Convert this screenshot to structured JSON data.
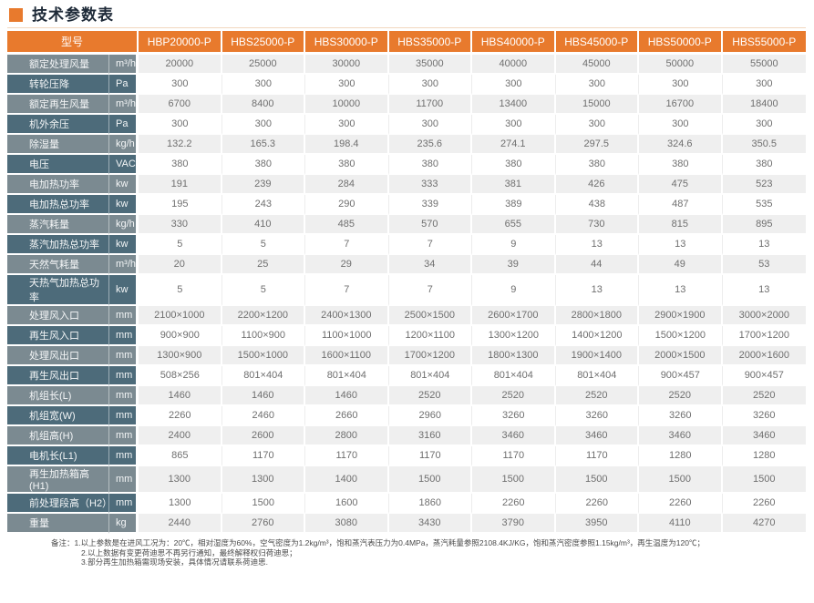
{
  "page": {
    "title": "技术参数表"
  },
  "colors": {
    "accent_orange": "#E87A2D",
    "label_light_slate": "#7B8A91",
    "label_dark_slate": "#4D6B7A",
    "row_gray": "#EFEFEF",
    "row_white": "#FFFFFF",
    "title_text": "#1E2A38"
  },
  "table": {
    "model_header": "型号",
    "models": [
      "HBP20000-P",
      "HBS25000-P",
      "HBS30000-P",
      "HBS35000-P",
      "HBS40000-P",
      "HBS45000-P",
      "HBS50000-P",
      "HBS55000-P"
    ],
    "rows": [
      {
        "label": "额定处理风量",
        "unit": "m³/h",
        "values": [
          "20000",
          "25000",
          "30000",
          "35000",
          "40000",
          "45000",
          "50000",
          "55000"
        ]
      },
      {
        "label": "转轮压降",
        "unit": "Pa",
        "values": [
          "300",
          "300",
          "300",
          "300",
          "300",
          "300",
          "300",
          "300"
        ]
      },
      {
        "label": "额定再生风量",
        "unit": "m³/h",
        "values": [
          "6700",
          "8400",
          "10000",
          "11700",
          "13400",
          "15000",
          "16700",
          "18400"
        ]
      },
      {
        "label": "机外余压",
        "unit": "Pa",
        "values": [
          "300",
          "300",
          "300",
          "300",
          "300",
          "300",
          "300",
          "300"
        ]
      },
      {
        "label": "除湿量",
        "unit": "kg/h",
        "values": [
          "132.2",
          "165.3",
          "198.4",
          "235.6",
          "274.1",
          "297.5",
          "324.6",
          "350.5"
        ]
      },
      {
        "label": "电压",
        "unit": "VAC",
        "values": [
          "380",
          "380",
          "380",
          "380",
          "380",
          "380",
          "380",
          "380"
        ]
      },
      {
        "label": "电加热功率",
        "unit": "kw",
        "values": [
          "191",
          "239",
          "284",
          "333",
          "381",
          "426",
          "475",
          "523"
        ]
      },
      {
        "label": "电加热总功率",
        "unit": "kw",
        "values": [
          "195",
          "243",
          "290",
          "339",
          "389",
          "438",
          "487",
          "535"
        ]
      },
      {
        "label": "蒸汽耗量",
        "unit": "kg/h",
        "values": [
          "330",
          "410",
          "485",
          "570",
          "655",
          "730",
          "815",
          "895"
        ]
      },
      {
        "label": "蒸汽加热总功率",
        "unit": "kw",
        "values": [
          "5",
          "5",
          "7",
          "7",
          "9",
          "13",
          "13",
          "13"
        ]
      },
      {
        "label": "天然气耗量",
        "unit": "m³/h",
        "values": [
          "20",
          "25",
          "29",
          "34",
          "39",
          "44",
          "49",
          "53"
        ]
      },
      {
        "label": "天热气加热总功率",
        "unit": "kw",
        "values": [
          "5",
          "5",
          "7",
          "7",
          "9",
          "13",
          "13",
          "13"
        ]
      },
      {
        "label": "处理风入口",
        "unit": "mm",
        "values": [
          "2100×1000",
          "2200×1200",
          "2400×1300",
          "2500×1500",
          "2600×1700",
          "2800×1800",
          "2900×1900",
          "3000×2000"
        ]
      },
      {
        "label": "再生风入口",
        "unit": "mm",
        "values": [
          "900×900",
          "1100×900",
          "1100×1000",
          "1200×1100",
          "1300×1200",
          "1400×1200",
          "1500×1200",
          "1700×1200"
        ]
      },
      {
        "label": "处理风出口",
        "unit": "mm",
        "values": [
          "1300×900",
          "1500×1000",
          "1600×1100",
          "1700×1200",
          "1800×1300",
          "1900×1400",
          "2000×1500",
          "2000×1600"
        ]
      },
      {
        "label": "再生风出口",
        "unit": "mm",
        "values": [
          "508×256",
          "801×404",
          "801×404",
          "801×404",
          "801×404",
          "801×404",
          "900×457",
          "900×457"
        ]
      },
      {
        "label": "机组长(L)",
        "unit": "mm",
        "values": [
          "1460",
          "1460",
          "1460",
          "2520",
          "2520",
          "2520",
          "2520",
          "2520"
        ]
      },
      {
        "label": "机组宽(W)",
        "unit": "mm",
        "values": [
          "2260",
          "2460",
          "2660",
          "2960",
          "3260",
          "3260",
          "3260",
          "3260"
        ]
      },
      {
        "label": "机组高(H)",
        "unit": "mm",
        "values": [
          "2400",
          "2600",
          "2800",
          "3160",
          "3460",
          "3460",
          "3460",
          "3460"
        ]
      },
      {
        "label": "电机长(L1)",
        "unit": "mm",
        "values": [
          "865",
          "1170",
          "1170",
          "1170",
          "1170",
          "1170",
          "1280",
          "1280"
        ]
      },
      {
        "label": "再生加热箱高(H1)",
        "unit": "mm",
        "values": [
          "1300",
          "1300",
          "1400",
          "1500",
          "1500",
          "1500",
          "1500",
          "1500"
        ]
      },
      {
        "label": "前处理段高（H2）",
        "unit": "mm",
        "values": [
          "1300",
          "1500",
          "1600",
          "1860",
          "2260",
          "2260",
          "2260",
          "2260"
        ]
      },
      {
        "label": "重量",
        "unit": "kg",
        "values": [
          "2440",
          "2760",
          "3080",
          "3430",
          "3790",
          "3950",
          "4110",
          "4270"
        ]
      }
    ]
  },
  "notes": {
    "label": "备注：",
    "lines": [
      "1.以上参数是在进风工况为：20℃，相对湿度为60%，空气密度为1.2kg/m³，饱和蒸汽表压力为0.4MPa，蒸汽耗量参照2108.4KJ/KG，饱和蒸汽密度参照1.15kg/m³，再生温度为120℃；",
      "2.以上数据有变更荷迪思不再另行通知，最终解释权归荷迪思；",
      "3.部分再生加热箱需现场安装，具体情况请联系荷迪思."
    ]
  }
}
